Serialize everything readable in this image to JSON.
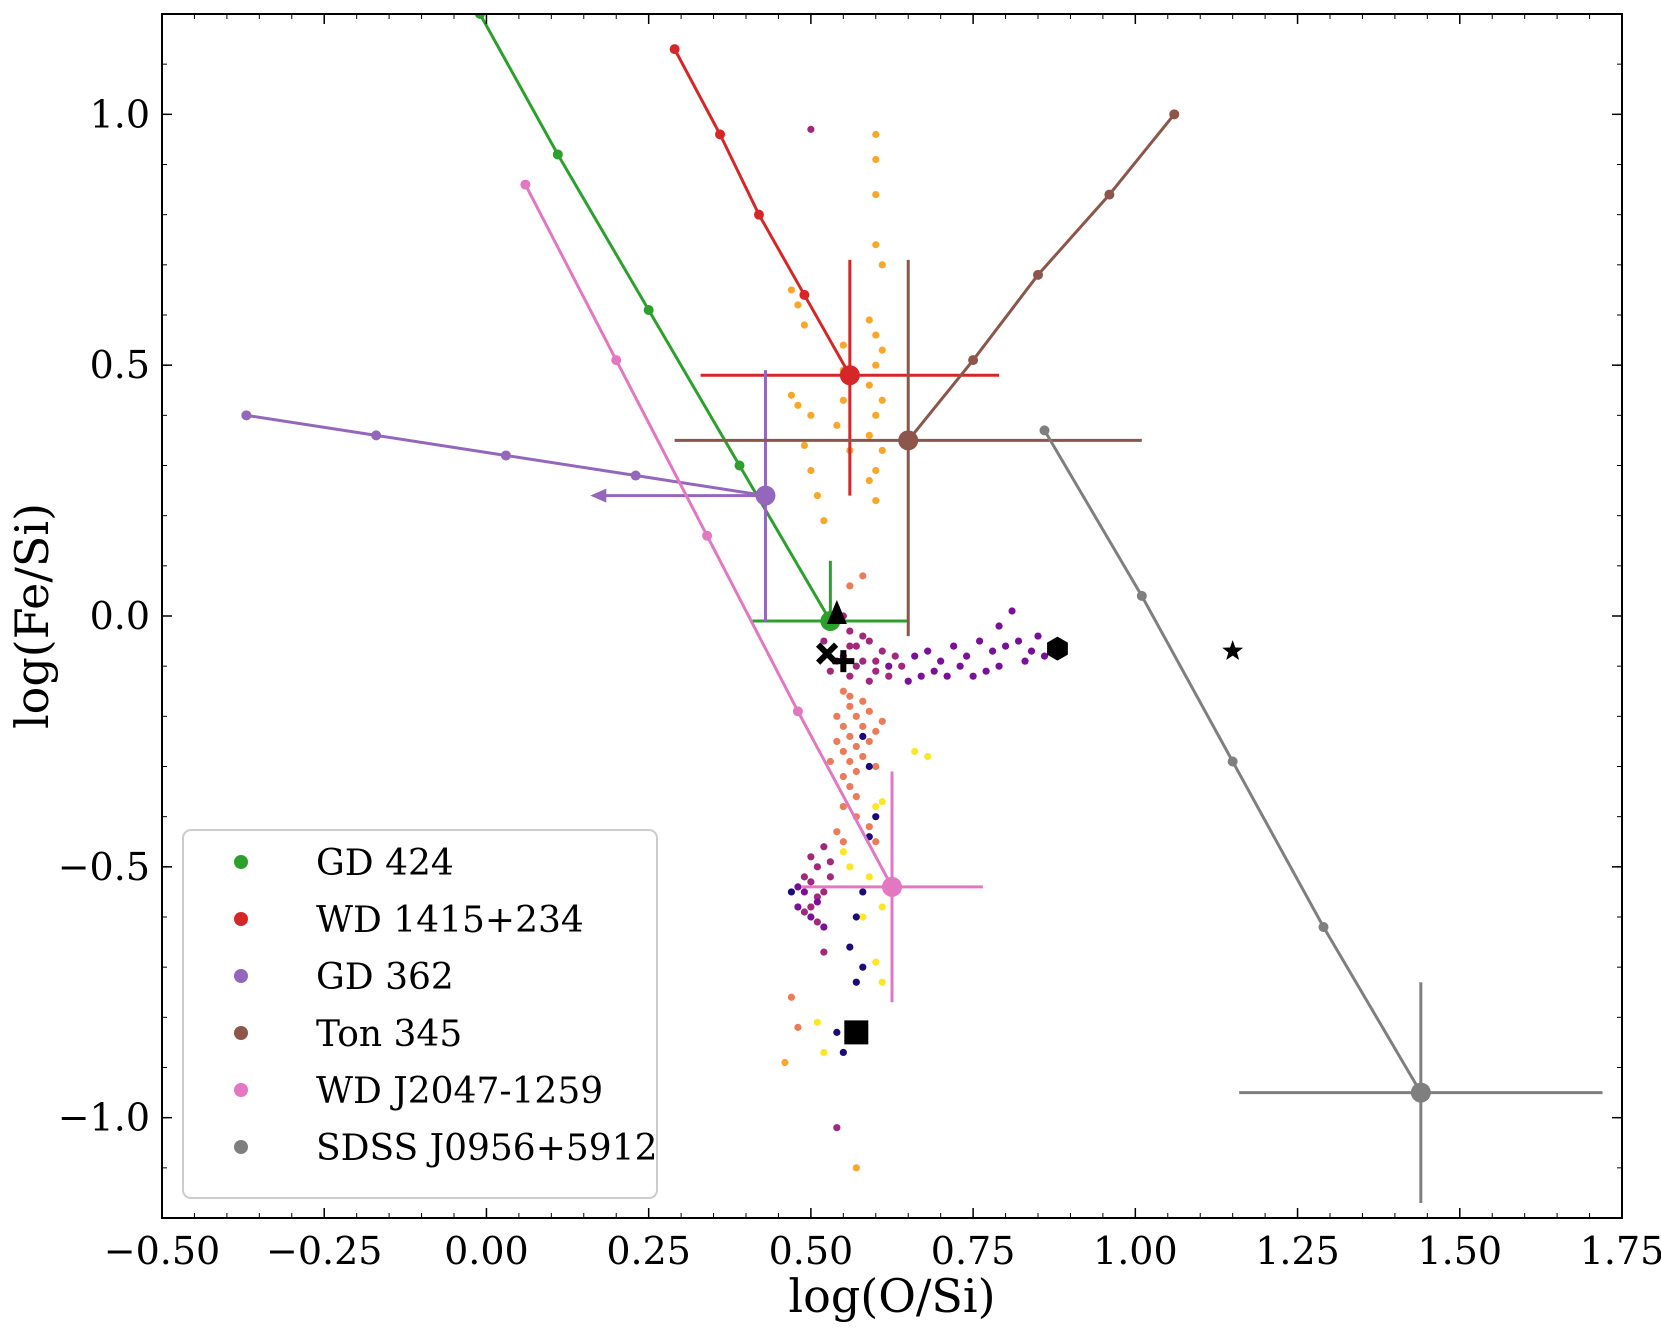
{
  "chart_data": {
    "type": "scatter",
    "xlabel": "log(O/Si)",
    "ylabel": "log(Fe/Si)",
    "xlim": [
      -0.5,
      1.75
    ],
    "ylim": [
      -1.2,
      1.2
    ],
    "x_ticks": [
      -0.5,
      -0.25,
      0.0,
      0.25,
      0.5,
      0.75,
      1.0,
      1.25,
      1.5,
      1.75
    ],
    "x_tick_labels": [
      "−0.50",
      "−0.25",
      "0.00",
      "0.25",
      "0.50",
      "0.75",
      "1.00",
      "1.25",
      "1.50",
      "1.75"
    ],
    "y_ticks": [
      -1.0,
      -0.5,
      0.0,
      0.5,
      1.0
    ],
    "y_tick_labels": [
      "−1.0",
      "−0.5",
      "0.0",
      "0.5",
      "1.0"
    ],
    "legend_placement": "lower-left",
    "grid": false,
    "series": [
      {
        "name": "GD 424",
        "color": "#2ca02c",
        "point": {
          "x": 0.53,
          "y": -0.01
        },
        "xerr": [
          0.12,
          0.12
        ],
        "yerr": [
          0.0,
          0.12
        ],
        "track": [
          [
            -0.01,
            1.2
          ],
          [
            0.11,
            0.92
          ],
          [
            0.25,
            0.61
          ],
          [
            0.39,
            0.3
          ],
          [
            0.53,
            -0.01
          ]
        ]
      },
      {
        "name": "WD 1415+234",
        "color": "#d62728",
        "point": {
          "x": 0.56,
          "y": 0.48
        },
        "xerr": [
          0.23,
          0.23
        ],
        "yerr": [
          0.24,
          0.23
        ],
        "track": [
          [
            0.29,
            1.13
          ],
          [
            0.36,
            0.96
          ],
          [
            0.42,
            0.8
          ],
          [
            0.49,
            0.64
          ],
          [
            0.56,
            0.48
          ]
        ]
      },
      {
        "name": "GD 362",
        "color": "#9467bd",
        "point": {
          "x": 0.43,
          "y": 0.24
        },
        "xerr": [
          0.0,
          0.0
        ],
        "yerr": [
          0.25,
          0.25
        ],
        "upper_limit_arrow_to_x": 0.16,
        "track": [
          [
            -0.37,
            0.4
          ],
          [
            -0.17,
            0.36
          ],
          [
            0.03,
            0.32
          ],
          [
            0.23,
            0.28
          ],
          [
            0.43,
            0.24
          ]
        ]
      },
      {
        "name": "Ton 345",
        "color": "#8c564b",
        "point": {
          "x": 0.65,
          "y": 0.35
        },
        "xerr": [
          0.36,
          0.36
        ],
        "yerr": [
          0.39,
          0.36
        ],
        "track": [
          [
            0.65,
            0.35
          ],
          [
            0.75,
            0.51
          ],
          [
            0.85,
            0.68
          ],
          [
            0.96,
            0.84
          ],
          [
            1.06,
            1.0
          ]
        ]
      },
      {
        "name": "WD J2047-1259",
        "color": "#e377c2",
        "point": {
          "x": 0.625,
          "y": -0.54
        },
        "xerr": [
          0.14,
          0.14
        ],
        "yerr": [
          0.23,
          0.23
        ],
        "track": [
          [
            0.06,
            0.86
          ],
          [
            0.2,
            0.51
          ],
          [
            0.34,
            0.16
          ],
          [
            0.48,
            -0.19
          ],
          [
            0.625,
            -0.54
          ]
        ]
      },
      {
        "name": "SDSS J0956+5912",
        "color": "#7f7f7f",
        "point": {
          "x": 1.44,
          "y": -0.95
        },
        "xerr": [
          0.28,
          0.28
        ],
        "yerr": [
          0.22,
          0.22
        ],
        "track": [
          [
            0.86,
            0.37
          ],
          [
            1.01,
            0.04
          ],
          [
            1.15,
            -0.29
          ],
          [
            1.29,
            -0.62
          ],
          [
            1.44,
            -0.95
          ]
        ]
      }
    ],
    "black_markers": [
      {
        "marker": "triangle",
        "x": 0.54,
        "y": 0.0
      },
      {
        "marker": "cross",
        "x": 0.525,
        "y": -0.075
      },
      {
        "marker": "plus",
        "x": 0.55,
        "y": -0.09
      },
      {
        "marker": "hexagon",
        "x": 0.88,
        "y": -0.065
      },
      {
        "marker": "star",
        "x": 1.15,
        "y": -0.07
      },
      {
        "marker": "square",
        "x": 0.57,
        "y": -0.83
      }
    ],
    "scatter_clouds": [
      {
        "color": "#f9a72b",
        "points": [
          [
            0.6,
            0.96
          ],
          [
            0.6,
            0.91
          ],
          [
            0.6,
            0.84
          ],
          [
            0.6,
            0.74
          ],
          [
            0.61,
            0.7
          ],
          [
            0.59,
            0.59
          ],
          [
            0.6,
            0.56
          ],
          [
            0.61,
            0.53
          ],
          [
            0.6,
            0.5
          ],
          [
            0.59,
            0.46
          ],
          [
            0.61,
            0.43
          ],
          [
            0.6,
            0.4
          ],
          [
            0.59,
            0.36
          ],
          [
            0.61,
            0.33
          ],
          [
            0.6,
            0.29
          ],
          [
            0.59,
            0.27
          ],
          [
            0.6,
            0.23
          ],
          [
            0.47,
            0.65
          ],
          [
            0.48,
            0.62
          ],
          [
            0.49,
            0.58
          ],
          [
            0.47,
            0.44
          ],
          [
            0.48,
            0.42
          ],
          [
            0.5,
            0.4
          ],
          [
            0.49,
            0.34
          ],
          [
            0.5,
            0.29
          ],
          [
            0.51,
            0.24
          ],
          [
            0.52,
            0.19
          ],
          [
            0.55,
            0.54
          ],
          [
            0.55,
            0.49
          ],
          [
            0.55,
            0.43
          ],
          [
            0.54,
            0.38
          ],
          [
            0.56,
            0.33
          ],
          [
            0.46,
            -0.89
          ],
          [
            0.57,
            -1.1
          ]
        ]
      },
      {
        "color": "#a2287b",
        "points": [
          [
            0.5,
            0.97
          ],
          [
            0.54,
            -1.02
          ],
          [
            0.55,
            0.0
          ],
          [
            0.56,
            -0.03
          ],
          [
            0.57,
            -0.06
          ],
          [
            0.58,
            -0.09
          ],
          [
            0.59,
            -0.05
          ],
          [
            0.6,
            -0.11
          ],
          [
            0.61,
            -0.07
          ],
          [
            0.56,
            -0.12
          ],
          [
            0.55,
            -0.08
          ],
          [
            0.57,
            -0.1
          ],
          [
            0.58,
            -0.04
          ],
          [
            0.6,
            -0.09
          ],
          [
            0.62,
            -0.12
          ],
          [
            0.63,
            -0.08
          ],
          [
            0.64,
            -0.1
          ],
          [
            0.59,
            -0.13
          ],
          [
            0.56,
            -0.06
          ],
          [
            0.54,
            -0.09
          ],
          [
            0.52,
            -0.05
          ],
          [
            0.53,
            -0.11
          ],
          [
            0.5,
            -0.48
          ],
          [
            0.51,
            -0.5
          ],
          [
            0.52,
            -0.46
          ],
          [
            0.5,
            -0.53
          ],
          [
            0.51,
            -0.56
          ],
          [
            0.49,
            -0.52
          ],
          [
            0.53,
            -0.49
          ],
          [
            0.52,
            -0.55
          ],
          [
            0.5,
            -0.58
          ],
          [
            0.51,
            -0.61
          ],
          [
            0.49,
            -0.59
          ],
          [
            0.52,
            -0.67
          ],
          [
            0.53,
            -0.52
          ]
        ]
      },
      {
        "color": "#7a0f9a",
        "points": [
          [
            0.66,
            -0.08
          ],
          [
            0.68,
            -0.07
          ],
          [
            0.7,
            -0.09
          ],
          [
            0.72,
            -0.06
          ],
          [
            0.74,
            -0.08
          ],
          [
            0.76,
            -0.05
          ],
          [
            0.78,
            -0.07
          ],
          [
            0.8,
            -0.06
          ],
          [
            0.82,
            -0.05
          ],
          [
            0.84,
            -0.07
          ],
          [
            0.86,
            -0.08
          ],
          [
            0.85,
            -0.04
          ],
          [
            0.83,
            -0.09
          ],
          [
            0.79,
            -0.1
          ],
          [
            0.77,
            -0.11
          ],
          [
            0.75,
            -0.12
          ],
          [
            0.73,
            -0.1
          ],
          [
            0.71,
            -0.12
          ],
          [
            0.69,
            -0.11
          ],
          [
            0.67,
            -0.12
          ],
          [
            0.81,
            0.01
          ],
          [
            0.79,
            -0.02
          ],
          [
            0.62,
            -0.1
          ],
          [
            0.65,
            -0.13
          ],
          [
            0.48,
            -0.58
          ],
          [
            0.49,
            -0.55
          ],
          [
            0.5,
            -0.6
          ],
          [
            0.48,
            -0.54
          ],
          [
            0.51,
            -0.57
          ],
          [
            0.52,
            -0.62
          ]
        ]
      },
      {
        "color": "#ec7c59",
        "points": [
          [
            0.55,
            -0.15
          ],
          [
            0.56,
            -0.18
          ],
          [
            0.57,
            -0.2
          ],
          [
            0.55,
            -0.22
          ],
          [
            0.56,
            -0.24
          ],
          [
            0.57,
            -0.26
          ],
          [
            0.58,
            -0.22
          ],
          [
            0.54,
            -0.2
          ],
          [
            0.55,
            -0.27
          ],
          [
            0.56,
            -0.29
          ],
          [
            0.57,
            -0.31
          ],
          [
            0.58,
            -0.28
          ],
          [
            0.59,
            -0.25
          ],
          [
            0.6,
            -0.23
          ],
          [
            0.59,
            -0.19
          ],
          [
            0.58,
            -0.17
          ],
          [
            0.56,
            -0.16
          ],
          [
            0.54,
            -0.25
          ],
          [
            0.55,
            -0.32
          ],
          [
            0.56,
            -0.34
          ],
          [
            0.57,
            -0.36
          ],
          [
            0.6,
            -0.3
          ],
          [
            0.61,
            -0.21
          ],
          [
            0.53,
            -0.29
          ],
          [
            0.55,
            -0.38
          ],
          [
            0.57,
            -0.4
          ],
          [
            0.59,
            -0.42
          ],
          [
            0.55,
            -0.45
          ],
          [
            0.54,
            -0.43
          ],
          [
            0.47,
            -0.76
          ],
          [
            0.48,
            -0.82
          ],
          [
            0.6,
            -0.45
          ],
          [
            0.56,
            0.06
          ],
          [
            0.58,
            0.08
          ]
        ]
      },
      {
        "color": "#fde725",
        "points": [
          [
            0.66,
            -0.27
          ],
          [
            0.68,
            -0.28
          ],
          [
            0.6,
            -0.38
          ],
          [
            0.61,
            -0.37
          ],
          [
            0.55,
            -0.47
          ],
          [
            0.56,
            -0.5
          ],
          [
            0.61,
            -0.58
          ],
          [
            0.6,
            -0.69
          ],
          [
            0.61,
            -0.73
          ],
          [
            0.59,
            -0.52
          ],
          [
            0.58,
            -0.6
          ],
          [
            0.51,
            -0.81
          ],
          [
            0.52,
            -0.87
          ]
        ]
      },
      {
        "color": "#1a0a7a",
        "points": [
          [
            0.58,
            -0.24
          ],
          [
            0.59,
            -0.3
          ],
          [
            0.6,
            -0.4
          ],
          [
            0.59,
            -0.44
          ],
          [
            0.58,
            -0.55
          ],
          [
            0.57,
            -0.6
          ],
          [
            0.56,
            -0.66
          ],
          [
            0.58,
            -0.7
          ],
          [
            0.57,
            -0.73
          ],
          [
            0.55,
            -0.87
          ],
          [
            0.54,
            -0.83
          ],
          [
            0.47,
            -0.55
          ]
        ]
      }
    ]
  }
}
